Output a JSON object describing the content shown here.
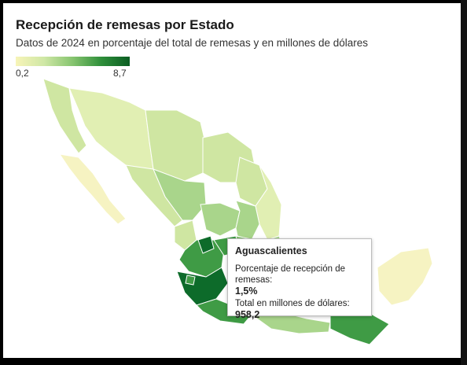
{
  "title": "Recepción de remesas por Estado",
  "subtitle": "Datos de 2024 en porcentaje del total de remesas y en millones de dólares",
  "legend": {
    "min": "0,2",
    "max": "8,7",
    "low_color": "#f7f4b8",
    "high_color": "#0a5d22"
  },
  "tooltip": {
    "state": "Aguascalientes",
    "pct_label": "Porcentaje de recepción de remesas:",
    "pct_value": "1,5%",
    "usd_label": "Total en millones de dólares:",
    "usd_value": "958,2"
  },
  "map_colors": {
    "lightest": "#f6f3c2",
    "light": "#e1efb3",
    "light_mid": "#cfe6a2",
    "mid": "#a9d58b",
    "mid_dark": "#7fbf6a",
    "dark": "#3f9b45",
    "darkest": "#0d6b2a",
    "border": "#ffffff"
  }
}
